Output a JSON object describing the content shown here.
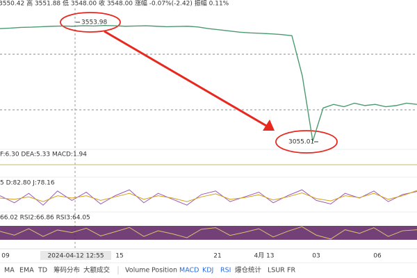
{
  "header": {
    "ohlc": "3550.42 高 3551.88 低 3548.00 收 3548.00 涨幅 -0.07%(-2.42) 振幅 0.11%"
  },
  "chart_data": {
    "type": "line",
    "ylim": [
      2975.7,
      3650.8
    ],
    "color": "#4a9a70",
    "values": [
      3530,
      3532,
      3535,
      3536,
      3538,
      3540,
      3541,
      3540,
      3542,
      3541,
      3543,
      3542,
      3540,
      3541,
      3542,
      3540,
      3538,
      3539,
      3540,
      3537,
      3530,
      3525,
      3520,
      3515,
      3512,
      3510,
      3508,
      3505,
      3500,
      3330,
      3055,
      3195,
      3210,
      3200,
      3215,
      3205,
      3210,
      3200,
      3205,
      3215,
      3210
    ],
    "annotations": [
      "3553.98",
      "3055.01"
    ]
  },
  "macd": {
    "label": "F:6.30 DEA:5.33 MACD:1.94"
  },
  "kdj": {
    "label": "5 D:82.80 J:78.16",
    "ylim": [
      0,
      100
    ],
    "series": [
      {
        "color": "#9b59b6",
        "values": [
          60,
          30,
          70,
          20,
          80,
          40,
          75,
          25,
          60,
          85,
          30,
          70,
          45,
          20,
          65,
          80,
          35,
          55,
          75,
          30,
          60,
          85,
          40,
          25,
          70,
          50,
          80,
          35,
          65,
          78
        ]
      },
      {
        "color": "#d4a017",
        "values": [
          50,
          45,
          55,
          35,
          60,
          50,
          60,
          40,
          55,
          70,
          45,
          60,
          50,
          35,
          55,
          68,
          45,
          52,
          64,
          42,
          55,
          72,
          48,
          38,
          60,
          52,
          70,
          45,
          60,
          82
        ]
      }
    ]
  },
  "rsi": {
    "label": "66.02 RSI2:66.86 RSI3:64.05",
    "ylim": [
      0,
      100
    ],
    "series": [
      {
        "color": "#e0c070",
        "values": [
          60,
          45,
          70,
          40,
          65,
          55,
          72,
          42,
          58,
          75,
          40,
          62,
          50,
          35,
          68,
          74,
          44,
          56,
          70,
          38,
          60,
          78,
          45,
          30,
          66,
          52,
          74,
          40,
          62,
          66
        ]
      }
    ]
  },
  "x_axis": {
    "labels": [
      "09",
      "15",
      "21",
      "4月 13",
      "03",
      "06"
    ]
  },
  "crosshair": "2024-04-12 12:55",
  "toolbar": [
    "MA",
    "EMA",
    "TD",
    "筹码分布",
    "大额成交",
    "Volume",
    "Position",
    "MACD",
    "KDJ",
    "RSI",
    "爆仓统计",
    "LSUR",
    "FR"
  ]
}
